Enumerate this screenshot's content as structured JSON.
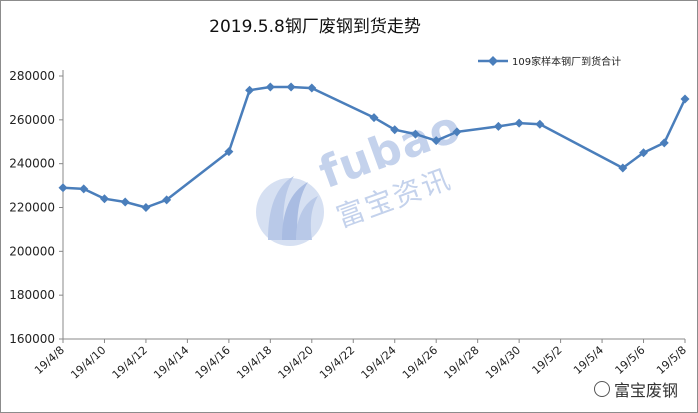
{
  "chart_data": {
    "type": "line",
    "title": "2019.5.8钢厂废钢到货走势",
    "xlabel": "",
    "ylabel": "",
    "ylim": [
      160000,
      280000
    ],
    "yticks": [
      160000,
      180000,
      200000,
      220000,
      240000,
      260000,
      280000
    ],
    "xticks": [
      "19/4/8",
      "19/4/10",
      "19/4/12",
      "19/4/14",
      "19/4/16",
      "19/4/18",
      "19/4/20",
      "19/4/22",
      "19/4/24",
      "19/4/26",
      "19/4/28",
      "19/4/30",
      "19/5/2",
      "19/5/4",
      "19/5/6",
      "19/5/8"
    ],
    "grid": false,
    "legend_position": "top-right",
    "series": [
      {
        "name": "109家样本钢厂到货合计",
        "color": "#4a7ebb",
        "points": [
          {
            "x": "19/4/8",
            "y": 229000
          },
          {
            "x": "19/4/9",
            "y": 228500
          },
          {
            "x": "19/4/10",
            "y": 224000
          },
          {
            "x": "19/4/11",
            "y": 222500
          },
          {
            "x": "19/4/12",
            "y": 220000
          },
          {
            "x": "19/4/13",
            "y": 223500
          },
          {
            "x": "19/4/16",
            "y": 245500
          },
          {
            "x": "19/4/17",
            "y": 273500
          },
          {
            "x": "19/4/18",
            "y": 275000
          },
          {
            "x": "19/4/19",
            "y": 275000
          },
          {
            "x": "19/4/20",
            "y": 274500
          },
          {
            "x": "19/4/23",
            "y": 261000
          },
          {
            "x": "19/4/24",
            "y": 255500
          },
          {
            "x": "19/4/25",
            "y": 253500
          },
          {
            "x": "19/4/26",
            "y": 250500
          },
          {
            "x": "19/4/27",
            "y": 254500
          },
          {
            "x": "19/4/29",
            "y": 257000
          },
          {
            "x": "19/4/30",
            "y": 258500
          },
          {
            "x": "19/5/1",
            "y": 258000
          },
          {
            "x": "19/5/5",
            "y": 238000
          },
          {
            "x": "19/5/6",
            "y": 245000
          },
          {
            "x": "19/5/7",
            "y": 249500
          },
          {
            "x": "19/5/8",
            "y": 269500
          }
        ]
      }
    ]
  },
  "watermark": {
    "brand": "fubao",
    "brand_cn": "富宝资讯"
  },
  "footer_mark": "富宝废钢"
}
